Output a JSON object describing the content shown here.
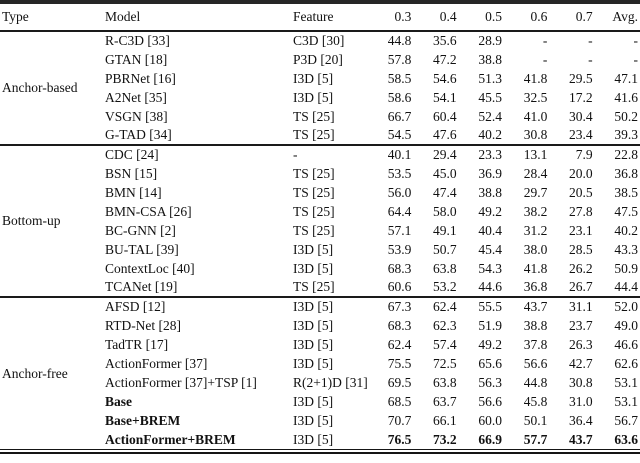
{
  "table": {
    "headers": [
      "Type",
      "Model",
      "Feature",
      "0.3",
      "0.4",
      "0.5",
      "0.6",
      "0.7",
      "Avg."
    ],
    "groups": [
      {
        "type": "Anchor-based",
        "rows": [
          {
            "model": "R-C3D [33]",
            "feature": "C3D [30]",
            "values": [
              "44.8",
              "35.6",
              "28.9",
              "-",
              "-",
              "-"
            ]
          },
          {
            "model": "GTAN [18]",
            "feature": "P3D [20]",
            "values": [
              "57.8",
              "47.2",
              "38.8",
              "-",
              "-",
              "-"
            ]
          },
          {
            "model": "PBRNet [16]",
            "feature": "I3D [5]",
            "values": [
              "58.5",
              "54.6",
              "51.3",
              "41.8",
              "29.5",
              "47.1"
            ]
          },
          {
            "model": "A2Net [35]",
            "feature": "I3D [5]",
            "values": [
              "58.6",
              "54.1",
              "45.5",
              "32.5",
              "17.2",
              "41.6"
            ]
          },
          {
            "model": "VSGN [38]",
            "feature": "TS [25]",
            "values": [
              "66.7",
              "60.4",
              "52.4",
              "41.0",
              "30.4",
              "50.2"
            ]
          },
          {
            "model": "G-TAD [34]",
            "feature": "TS [25]",
            "values": [
              "54.5",
              "47.6",
              "40.2",
              "30.8",
              "23.4",
              "39.3"
            ]
          }
        ]
      },
      {
        "type": "Bottom-up",
        "rows": [
          {
            "model": "CDC [24]",
            "feature": "-",
            "values": [
              "40.1",
              "29.4",
              "23.3",
              "13.1",
              "7.9",
              "22.8"
            ]
          },
          {
            "model": "BSN [15]",
            "feature": "TS [25]",
            "values": [
              "53.5",
              "45.0",
              "36.9",
              "28.4",
              "20.0",
              "36.8"
            ]
          },
          {
            "model": "BMN [14]",
            "feature": "TS [25]",
            "values": [
              "56.0",
              "47.4",
              "38.8",
              "29.7",
              "20.5",
              "38.5"
            ]
          },
          {
            "model": "BMN-CSA [26]",
            "feature": "TS [25]",
            "values": [
              "64.4",
              "58.0",
              "49.2",
              "38.2",
              "27.8",
              "47.5"
            ]
          },
          {
            "model": "BC-GNN [2]",
            "feature": "TS [25]",
            "values": [
              "57.1",
              "49.1",
              "40.4",
              "31.2",
              "23.1",
              "40.2"
            ]
          },
          {
            "model": "BU-TAL [39]",
            "feature": "I3D [5]",
            "values": [
              "53.9",
              "50.7",
              "45.4",
              "38.0",
              "28.5",
              "43.3"
            ]
          },
          {
            "model": "ContextLoc [40]",
            "feature": "I3D [5]",
            "values": [
              "68.3",
              "63.8",
              "54.3",
              "41.8",
              "26.2",
              "50.9"
            ]
          },
          {
            "model": "TCANet [19]",
            "feature": "TS [25]",
            "values": [
              "60.6",
              "53.2",
              "44.6",
              "36.8",
              "26.7",
              "44.4"
            ]
          }
        ]
      },
      {
        "type": "Anchor-free",
        "rows": [
          {
            "model": "AFSD [12]",
            "feature": "I3D [5]",
            "values": [
              "67.3",
              "62.4",
              "55.5",
              "43.7",
              "31.1",
              "52.0"
            ]
          },
          {
            "model": "RTD-Net [28]",
            "feature": "I3D [5]",
            "values": [
              "68.3",
              "62.3",
              "51.9",
              "38.8",
              "23.7",
              "49.0"
            ]
          },
          {
            "model": "TadTR [17]",
            "feature": "I3D [5]",
            "values": [
              "62.4",
              "57.4",
              "49.2",
              "37.8",
              "26.3",
              "46.6"
            ]
          },
          {
            "model": "ActionFormer [37]",
            "feature": "I3D [5]",
            "values": [
              "75.5",
              "72.5",
              "65.6",
              "56.6",
              "42.7",
              "62.6"
            ]
          },
          {
            "model": "ActionFormer [37]+TSP [1]",
            "feature": "R(2+1)D [31]",
            "values": [
              "69.5",
              "63.8",
              "56.3",
              "44.8",
              "30.8",
              "53.1"
            ]
          },
          {
            "model": "Base",
            "feature": "I3D [5]",
            "values": [
              "68.5",
              "63.7",
              "56.6",
              "45.8",
              "31.0",
              "53.1"
            ],
            "model_bold": true
          },
          {
            "model": "Base+BREM",
            "feature": "I3D [5]",
            "values": [
              "70.7",
              "66.1",
              "60.0",
              "50.1",
              "36.4",
              "56.7"
            ],
            "model_bold": true
          },
          {
            "model": "ActionFormer+BREM",
            "feature": "I3D [5]",
            "values": [
              "76.5",
              "73.2",
              "66.9",
              "57.7",
              "43.7",
              "63.6"
            ],
            "model_bold": true,
            "values_bold": true
          }
        ]
      }
    ]
  }
}
